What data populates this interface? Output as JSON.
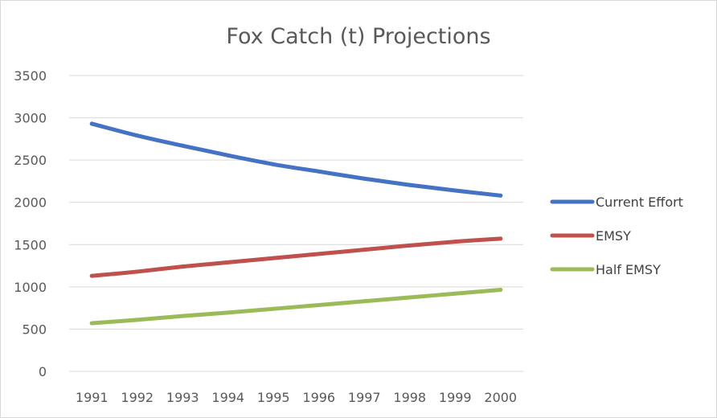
{
  "chart_data": {
    "type": "line",
    "title": "Fox Catch (t) Projections",
    "xlabel": "",
    "ylabel": "",
    "categories": [
      "1991",
      "1992",
      "1993",
      "1994",
      "1995",
      "1996",
      "1997",
      "1998",
      "1999",
      "2000"
    ],
    "ylim": [
      0,
      3500
    ],
    "yticks": [
      "0",
      "500",
      "1000",
      "1500",
      "2000",
      "2500",
      "3000",
      "3500"
    ],
    "grid": true,
    "legend_position": "right",
    "series": [
      {
        "name": "Current Effort",
        "color": "#4472C4",
        "values": [
          2930,
          2790,
          2670,
          2555,
          2450,
          2365,
          2280,
          2205,
          2140,
          2080
        ]
      },
      {
        "name": "EMSY",
        "color": "#C0504D",
        "values": [
          1130,
          1180,
          1240,
          1290,
          1340,
          1390,
          1440,
          1490,
          1535,
          1570
        ]
      },
      {
        "name": "Half EMSY",
        "color": "#9BBB59",
        "values": [
          570,
          610,
          655,
          695,
          740,
          785,
          830,
          875,
          920,
          965
        ]
      }
    ]
  }
}
